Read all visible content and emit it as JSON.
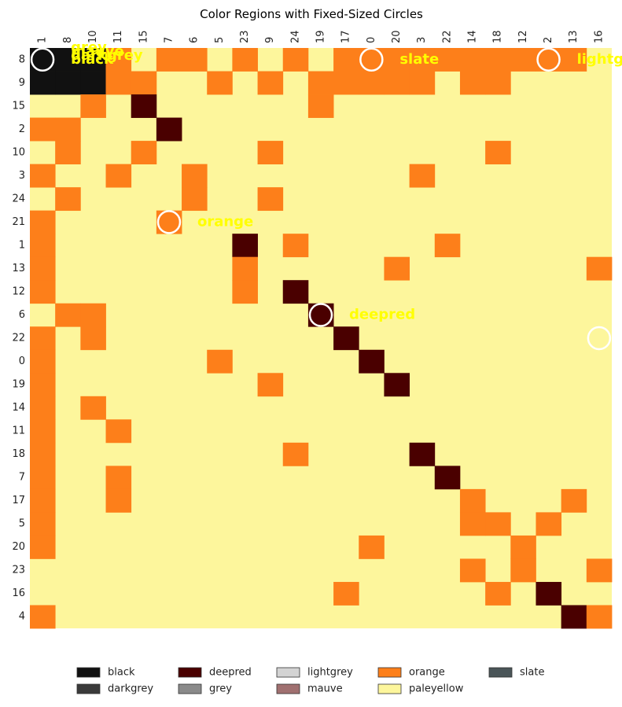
{
  "chart_data": {
    "type": "heatmap",
    "title": "Color Regions with Fixed-Sized Circles",
    "xlabel": "",
    "ylabel": "",
    "x_categories": [
      "1",
      "8",
      "10",
      "11",
      "15",
      "7",
      "6",
      "5",
      "23",
      "9",
      "24",
      "19",
      "17",
      "0",
      "20",
      "3",
      "22",
      "14",
      "18",
      "12",
      "2",
      "13",
      "16"
    ],
    "y_categories": [
      "8",
      "9",
      "15",
      "2",
      "10",
      "3",
      "24",
      "21",
      "1",
      "13",
      "12",
      "6",
      "22",
      "0",
      "19",
      "14",
      "11",
      "18",
      "7",
      "17",
      "5",
      "20",
      "23",
      "16",
      "4"
    ],
    "color_scale": {
      "paleyellow": "#fdf69c",
      "orange": "#fd7f1a",
      "deepred": "#4a0000",
      "black": "#111111"
    },
    "default_cell": "paleyellow",
    "cells": [
      {
        "row": "8",
        "col": "1",
        "color": "black"
      },
      {
        "row": "8",
        "col": "8",
        "color": "black"
      },
      {
        "row": "8",
        "col": "10",
        "color": "black"
      },
      {
        "row": "8",
        "col": "11",
        "color": "orange"
      },
      {
        "row": "8",
        "col": "7",
        "color": "orange"
      },
      {
        "row": "8",
        "col": "6",
        "color": "orange"
      },
      {
        "row": "8",
        "col": "23",
        "color": "orange"
      },
      {
        "row": "8",
        "col": "24",
        "color": "orange"
      },
      {
        "row": "8",
        "col": "17",
        "color": "orange"
      },
      {
        "row": "8",
        "col": "0",
        "color": "orange"
      },
      {
        "row": "8",
        "col": "20",
        "color": "orange"
      },
      {
        "row": "8",
        "col": "3",
        "color": "orange"
      },
      {
        "row": "8",
        "col": "22",
        "color": "orange"
      },
      {
        "row": "8",
        "col": "14",
        "color": "orange"
      },
      {
        "row": "8",
        "col": "18",
        "color": "orange"
      },
      {
        "row": "8",
        "col": "12",
        "color": "orange"
      },
      {
        "row": "8",
        "col": "2",
        "color": "orange"
      },
      {
        "row": "8",
        "col": "13",
        "color": "orange"
      },
      {
        "row": "9",
        "col": "1",
        "color": "black"
      },
      {
        "row": "9",
        "col": "8",
        "color": "black"
      },
      {
        "row": "9",
        "col": "10",
        "color": "black"
      },
      {
        "row": "9",
        "col": "11",
        "color": "orange"
      },
      {
        "row": "9",
        "col": "15",
        "color": "orange"
      },
      {
        "row": "9",
        "col": "5",
        "color": "orange"
      },
      {
        "row": "9",
        "col": "9",
        "color": "orange"
      },
      {
        "row": "9",
        "col": "19",
        "color": "orange"
      },
      {
        "row": "9",
        "col": "17",
        "color": "orange"
      },
      {
        "row": "9",
        "col": "0",
        "color": "orange"
      },
      {
        "row": "9",
        "col": "20",
        "color": "orange"
      },
      {
        "row": "9",
        "col": "3",
        "color": "orange"
      },
      {
        "row": "9",
        "col": "14",
        "color": "orange"
      },
      {
        "row": "9",
        "col": "18",
        "color": "orange"
      },
      {
        "row": "15",
        "col": "10",
        "color": "orange"
      },
      {
        "row": "15",
        "col": "15",
        "color": "deepred"
      },
      {
        "row": "15",
        "col": "19",
        "color": "orange"
      },
      {
        "row": "2",
        "col": "1",
        "color": "orange"
      },
      {
        "row": "2",
        "col": "8",
        "color": "orange"
      },
      {
        "row": "2",
        "col": "7",
        "color": "deepred"
      },
      {
        "row": "10",
        "col": "8",
        "color": "orange"
      },
      {
        "row": "10",
        "col": "15",
        "color": "orange"
      },
      {
        "row": "10",
        "col": "9",
        "color": "orange"
      },
      {
        "row": "10",
        "col": "18",
        "color": "orange"
      },
      {
        "row": "3",
        "col": "1",
        "color": "orange"
      },
      {
        "row": "3",
        "col": "11",
        "color": "orange"
      },
      {
        "row": "3",
        "col": "6",
        "color": "orange"
      },
      {
        "row": "3",
        "col": "3",
        "color": "orange"
      },
      {
        "row": "24",
        "col": "8",
        "color": "orange"
      },
      {
        "row": "24",
        "col": "6",
        "color": "orange"
      },
      {
        "row": "24",
        "col": "9",
        "color": "orange"
      },
      {
        "row": "21",
        "col": "1",
        "color": "orange"
      },
      {
        "row": "21",
        "col": "7",
        "color": "orange"
      },
      {
        "row": "1",
        "col": "1",
        "color": "orange"
      },
      {
        "row": "1",
        "col": "23",
        "color": "deepred"
      },
      {
        "row": "1",
        "col": "24",
        "color": "orange"
      },
      {
        "row": "1",
        "col": "22",
        "color": "orange"
      },
      {
        "row": "13",
        "col": "1",
        "color": "orange"
      },
      {
        "row": "13",
        "col": "23",
        "color": "orange"
      },
      {
        "row": "13",
        "col": "20",
        "color": "orange"
      },
      {
        "row": "13",
        "col": "16",
        "color": "orange"
      },
      {
        "row": "12",
        "col": "1",
        "color": "orange"
      },
      {
        "row": "12",
        "col": "23",
        "color": "orange"
      },
      {
        "row": "12",
        "col": "24",
        "color": "deepred"
      },
      {
        "row": "6",
        "col": "8",
        "color": "orange"
      },
      {
        "row": "6",
        "col": "10",
        "color": "orange"
      },
      {
        "row": "6",
        "col": "19",
        "color": "deepred"
      },
      {
        "row": "22",
        "col": "1",
        "color": "orange"
      },
      {
        "row": "22",
        "col": "10",
        "color": "orange"
      },
      {
        "row": "22",
        "col": "17",
        "color": "deepred"
      },
      {
        "row": "0",
        "col": "1",
        "color": "orange"
      },
      {
        "row": "0",
        "col": "5",
        "color": "orange"
      },
      {
        "row": "0",
        "col": "0",
        "color": "deepred"
      },
      {
        "row": "19",
        "col": "1",
        "color": "orange"
      },
      {
        "row": "19",
        "col": "9",
        "color": "orange"
      },
      {
        "row": "19",
        "col": "20",
        "color": "deepred"
      },
      {
        "row": "14",
        "col": "1",
        "color": "orange"
      },
      {
        "row": "14",
        "col": "10",
        "color": "orange"
      },
      {
        "row": "14",
        "col": "4",
        "color": "deepred"
      },
      {
        "row": "11",
        "col": "1",
        "color": "orange"
      },
      {
        "row": "11",
        "col": "11",
        "color": "orange"
      },
      {
        "row": "11",
        "col": "4",
        "color": "orange"
      },
      {
        "row": "18",
        "col": "1",
        "color": "orange"
      },
      {
        "row": "18",
        "col": "24",
        "color": "orange"
      },
      {
        "row": "18",
        "col": "3",
        "color": "deepred"
      },
      {
        "row": "7",
        "col": "1",
        "color": "orange"
      },
      {
        "row": "7",
        "col": "11",
        "color": "orange"
      },
      {
        "row": "7",
        "col": "22",
        "color": "deepred"
      },
      {
        "row": "17",
        "col": "1",
        "color": "orange"
      },
      {
        "row": "17",
        "col": "11",
        "color": "orange"
      },
      {
        "row": "17",
        "col": "14",
        "color": "orange"
      },
      {
        "row": "17",
        "col": "13",
        "color": "orange"
      },
      {
        "row": "5",
        "col": "1",
        "color": "orange"
      },
      {
        "row": "5",
        "col": "18",
        "color": "orange"
      },
      {
        "row": "5",
        "col": "14",
        "color": "orange"
      },
      {
        "row": "5",
        "col": "2",
        "color": "orange"
      },
      {
        "row": "20",
        "col": "1",
        "color": "orange"
      },
      {
        "row": "20",
        "col": "0",
        "color": "orange"
      },
      {
        "row": "20",
        "col": "12",
        "color": "orange"
      },
      {
        "row": "23",
        "col": "14",
        "color": "orange"
      },
      {
        "row": "23",
        "col": "12",
        "color": "orange"
      },
      {
        "row": "23",
        "col": "16",
        "color": "orange"
      },
      {
        "row": "16",
        "col": "17",
        "color": "orange"
      },
      {
        "row": "16",
        "col": "18",
        "color": "orange"
      },
      {
        "row": "16",
        "col": "2",
        "color": "deepred"
      },
      {
        "row": "4",
        "col": "1",
        "color": "orange"
      },
      {
        "row": "4",
        "col": "13",
        "color": "deepred"
      },
      {
        "row": "4",
        "col": "16",
        "color": "orange"
      }
    ],
    "annotations": [
      {
        "text": "black",
        "row": "8",
        "col": "1"
      },
      {
        "text": "darkgrey",
        "row": "8",
        "col": "1"
      },
      {
        "text": "mauve",
        "row": "8",
        "col": "1"
      },
      {
        "text": "grey",
        "row": "8",
        "col": "1"
      },
      {
        "text": "slate",
        "row": "8",
        "col": "0"
      },
      {
        "text": "lightgrey",
        "row": "8",
        "col": "2"
      },
      {
        "text": "orange",
        "row": "21",
        "col": "7"
      },
      {
        "text": "deepred",
        "row": "6",
        "col": "19"
      },
      {
        "text": "paleyellow",
        "row": "22",
        "col": "16"
      }
    ],
    "annotation_color": "#ffff00",
    "circle_color": "#ffffff",
    "legend_position": "bottom",
    "legend": [
      {
        "label": "black",
        "color": "#111111"
      },
      {
        "label": "darkgrey",
        "color": "#3a3a3a"
      },
      {
        "label": "deepred",
        "color": "#4a0000"
      },
      {
        "label": "grey",
        "color": "#8a8a8a"
      },
      {
        "label": "lightgrey",
        "color": "#d3d3d3"
      },
      {
        "label": "mauve",
        "color": "#a07070"
      },
      {
        "label": "orange",
        "color": "#fd7f1a"
      },
      {
        "label": "paleyellow",
        "color": "#fdf69c"
      },
      {
        "label": "slate",
        "color": "#4a5558"
      }
    ]
  }
}
